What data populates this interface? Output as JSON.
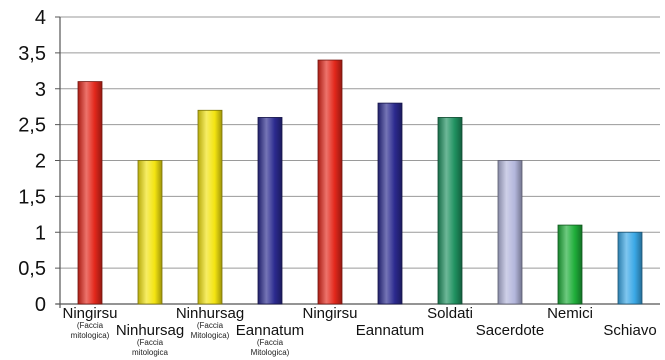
{
  "chart_data": {
    "type": "bar",
    "ylim": [
      0,
      4
    ],
    "yticks": [
      "0",
      "0,5",
      "1",
      "1,5",
      "2",
      "2,5",
      "3",
      "3,5",
      "4"
    ],
    "grid": true,
    "legend": "none",
    "categories": [
      {
        "label": "Ningirsu",
        "note": [
          "(Faccia",
          "mitologica)"
        ],
        "value": 3.1,
        "color": "#e3271b",
        "row": 0
      },
      {
        "label": "Ninhursag",
        "note": [
          "(Faccia",
          "mitologica"
        ],
        "value": 2.0,
        "color": "#f3e410",
        "row": 1
      },
      {
        "label": "Ninhursag",
        "note": [
          "(Faccia",
          "Mitologica)"
        ],
        "value": 2.7,
        "color": "#f3e410",
        "row": 0
      },
      {
        "label": "Eannatum",
        "note": [
          "(Faccia",
          "Mitologica)"
        ],
        "value": 2.6,
        "color": "#2b2a8f",
        "row": 1
      },
      {
        "label": "Ningirsu",
        "note": [],
        "value": 3.4,
        "color": "#e3271b",
        "row": 0
      },
      {
        "label": "Eannatum",
        "note": [],
        "value": 2.8,
        "color": "#2b2a8f",
        "row": 1
      },
      {
        "label": "Soldati",
        "note": [],
        "value": 2.6,
        "color": "#1f9160",
        "row": 0
      },
      {
        "label": "Sacerdote",
        "note": [],
        "value": 2.0,
        "color": "#b3b6dc",
        "row": 1
      },
      {
        "label": "Nemici",
        "note": [],
        "value": 1.1,
        "color": "#1fae3a",
        "row": 0
      },
      {
        "label": "Schiavo",
        "note": [],
        "value": 1.0,
        "color": "#3aa8e6",
        "row": 1
      }
    ]
  }
}
